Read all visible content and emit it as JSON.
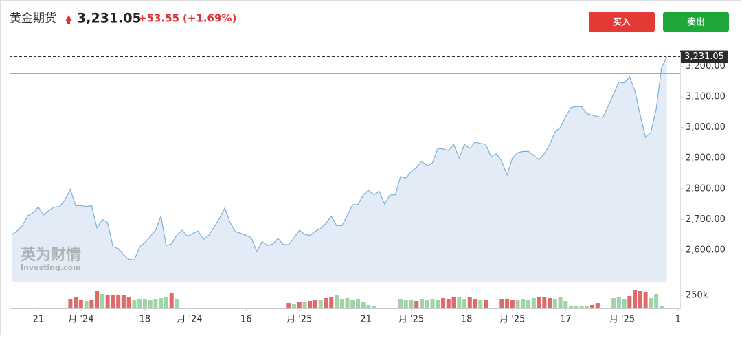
{
  "header": {
    "title": "黄金期货",
    "change": "+53.55",
    "change_pct": "(+1.69%)"
  },
  "buttons": {
    "buy": "买入",
    "sell": "卖出"
  },
  "watermark": {
    "brand": "英为财情",
    "site": "Investing.com"
  },
  "chart_data": {
    "type": "area",
    "values": [
      2650,
      2663,
      2680,
      2712,
      2722,
      2740,
      2715,
      2730,
      2740,
      2742,
      2765,
      2798,
      2745,
      2745,
      2742,
      2745,
      2672,
      2700,
      2690,
      2612,
      2605,
      2585,
      2570,
      2568,
      2610,
      2625,
      2645,
      2665,
      2710,
      2615,
      2620,
      2650,
      2665,
      2645,
      2655,
      2662,
      2635,
      2648,
      2675,
      2703,
      2738,
      2690,
      2660,
      2655,
      2648,
      2640,
      2595,
      2628,
      2615,
      2620,
      2638,
      2618,
      2618,
      2640,
      2665,
      2652,
      2648,
      2662,
      2670,
      2688,
      2710,
      2680,
      2680,
      2713,
      2748,
      2748,
      2780,
      2795,
      2780,
      2792,
      2750,
      2780,
      2780,
      2840,
      2835,
      2855,
      2870,
      2890,
      2875,
      2885,
      2932,
      2930,
      2925,
      2945,
      2900,
      2945,
      2932,
      2952,
      2948,
      2945,
      2905,
      2915,
      2890,
      2845,
      2900,
      2918,
      2922,
      2922,
      2910,
      2895,
      2915,
      2945,
      2985,
      3000,
      3035,
      3065,
      3068,
      3068,
      3045,
      3040,
      3035,
      3033,
      3070,
      3110,
      3148,
      3145,
      3165,
      3120,
      3040,
      2968,
      2985,
      3060,
      3195,
      3231.05
    ],
    "color": "#7bafd8",
    "fill": "#e3ecf6",
    "last_price": {
      "value": 3231.05,
      "label": "3,231.05"
    },
    "reference_line": 3177.5,
    "reference_color": "#e88f8f",
    "ylim": [
      2497,
      3248
    ],
    "yticks": [
      {
        "value": 2600,
        "label": "2,600.00"
      },
      {
        "value": 2700,
        "label": "2,700.00"
      },
      {
        "value": 2800,
        "label": "2,800.00"
      },
      {
        "value": 2900,
        "label": "2,900.00"
      },
      {
        "value": 3000,
        "label": "3,000.00"
      },
      {
        "value": 3100,
        "label": "3,100.00"
      },
      {
        "value": 3200,
        "label": "3,200.00"
      }
    ],
    "xlim": [
      -0.4,
      125.5
    ],
    "xticks": [
      {
        "value": 5,
        "label": "21"
      },
      {
        "value": 13,
        "label": "月 '24"
      },
      {
        "value": 25,
        "label": "18"
      },
      {
        "value": 33.4,
        "label": "月 '24"
      },
      {
        "value": 44,
        "label": "16"
      },
      {
        "value": 54,
        "label": "月 '25"
      },
      {
        "value": 66.5,
        "label": "21"
      },
      {
        "value": 75,
        "label": "月 '25"
      },
      {
        "value": 85.4,
        "label": "18"
      },
      {
        "value": 94,
        "label": "月 '25"
      },
      {
        "value": 104,
        "label": "17"
      },
      {
        "value": 114.6,
        "label": "月 '25"
      },
      {
        "value": 125.1,
        "label": "1"
      }
    ],
    "volume": {
      "values": [
        null,
        null,
        null,
        null,
        null,
        null,
        null,
        null,
        null,
        null,
        null,
        181000,
        209000,
        167000,
        139000,
        153000,
        334000,
        278000,
        250000,
        250000,
        250000,
        250000,
        222000,
        167000,
        181000,
        181000,
        167000,
        181000,
        195000,
        222000,
        306000,
        181000,
        null,
        null,
        null,
        null,
        null,
        null,
        null,
        null,
        null,
        null,
        null,
        null,
        null,
        null,
        null,
        null,
        null,
        null,
        null,
        null,
        97000,
        70000,
        111000,
        111000,
        139000,
        167000,
        153000,
        195000,
        209000,
        264000,
        181000,
        195000,
        167000,
        181000,
        125000,
        56000,
        28000,
        null,
        null,
        null,
        null,
        181000,
        167000,
        167000,
        139000,
        181000,
        153000,
        181000,
        167000,
        195000,
        181000,
        222000,
        209000,
        181000,
        209000,
        181000,
        153000,
        153000,
        null,
        null,
        181000,
        181000,
        167000,
        167000,
        181000,
        167000,
        195000,
        222000,
        209000,
        195000,
        181000,
        222000,
        139000,
        28000,
        28000,
        42000,
        28000,
        56000,
        97000,
        null,
        null,
        195000,
        209000,
        181000,
        236000,
        361000,
        334000,
        320000,
        195000,
        278000,
        42000,
        null
      ],
      "colors": [
        null,
        null,
        null,
        null,
        null,
        null,
        null,
        null,
        null,
        null,
        null,
        "#e06a6a",
        "#e06a6a",
        "#e06a6a",
        "#9fd4a8",
        "#e06a6a",
        "#e06a6a",
        "#9fd4a8",
        "#e06a6a",
        "#e06a6a",
        "#e06a6a",
        "#e06a6a",
        "#e06a6a",
        "#9fd4a8",
        "#9fd4a8",
        "#9fd4a8",
        "#9fd4a8",
        "#9fd4a8",
        "#9fd4a8",
        "#9fd4a8",
        "#e06a6a",
        "#9fd4a8",
        null,
        null,
        null,
        null,
        null,
        null,
        null,
        null,
        null,
        null,
        null,
        null,
        null,
        null,
        null,
        null,
        null,
        null,
        null,
        null,
        "#e06a6a",
        "#9fd4a8",
        "#e06a6a",
        "#9fd4a8",
        "#e06a6a",
        "#e06a6a",
        "#9fd4a8",
        "#e06a6a",
        "#e06a6a",
        "#9fd4a8",
        "#9fd4a8",
        "#9fd4a8",
        "#9fd4a8",
        "#9fd4a8",
        "#9fd4a8",
        "#9fd4a8",
        "#9fd4a8",
        null,
        null,
        null,
        null,
        "#9fd4a8",
        "#9fd4a8",
        "#9fd4a8",
        "#e06a6a",
        "#9fd4a8",
        "#9fd4a8",
        "#9fd4a8",
        "#9fd4a8",
        "#e06a6a",
        "#e06a6a",
        "#e06a6a",
        "#9fd4a8",
        "#9fd4a8",
        "#e06a6a",
        "#e06a6a",
        "#9fd4a8",
        "#e06a6a",
        null,
        null,
        "#e06a6a",
        "#e06a6a",
        "#e06a6a",
        "#9fd4a8",
        "#9fd4a8",
        "#9fd4a8",
        "#9fd4a8",
        "#e06a6a",
        "#e06a6a",
        "#e06a6a",
        "#9fd4a8",
        "#9fd4a8",
        "#9fd4a8",
        "#9fd4a8",
        "#9fd4a8",
        "#9fd4a8",
        "#9fd4a8",
        "#e06a6a",
        "#e06a6a",
        null,
        null,
        "#9fd4a8",
        "#9fd4a8",
        "#9fd4a8",
        "#e06a6a",
        "#e06a6a",
        "#e06a6a",
        "#e06a6a",
        "#9fd4a8",
        "#9fd4a8",
        "#9fd4a8",
        null
      ],
      "ylim": [
        0,
        500000
      ],
      "yticks": [
        {
          "value": 250000,
          "label": "250k"
        }
      ]
    }
  }
}
